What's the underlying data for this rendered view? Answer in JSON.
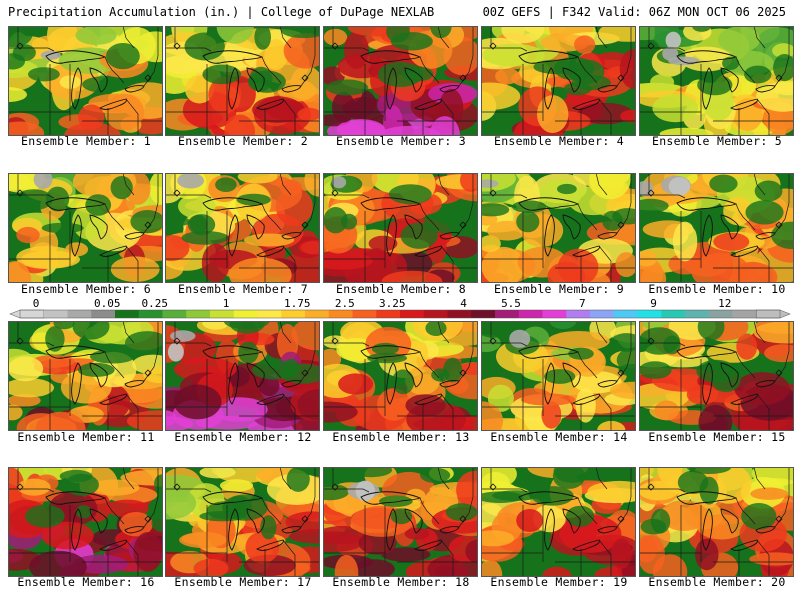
{
  "header": {
    "left": "Precipitation Accumulation (in.) | College of DuPage NEXLAB",
    "right": "00Z GEFS | F342 Valid: 06Z MON OCT 06 2025"
  },
  "panels": [
    {
      "label": "Ensemble Member: 1",
      "intensity": 0.4,
      "south": 0.6,
      "east": 0.3,
      "west": 0.3,
      "grey": 0.15
    },
    {
      "label": "Ensemble Member: 2",
      "intensity": 0.45,
      "south": 0.75,
      "east": 0.45,
      "west": 0.3,
      "grey": 0.0
    },
    {
      "label": "Ensemble Member: 3",
      "intensity": 0.85,
      "south": 0.8,
      "east": 0.7,
      "west": 0.6,
      "grey": 0.0
    },
    {
      "label": "Ensemble Member: 4",
      "intensity": 0.55,
      "south": 0.5,
      "east": 0.85,
      "west": 0.3,
      "grey": 0.0
    },
    {
      "label": "Ensemble Member: 5",
      "intensity": 0.3,
      "south": 0.5,
      "east": 0.35,
      "west": 0.2,
      "grey": 0.45
    },
    {
      "label": "Ensemble Member: 6",
      "intensity": 0.4,
      "south": 0.65,
      "east": 0.5,
      "west": 0.3,
      "grey": 0.1
    },
    {
      "label": "Ensemble Member: 7",
      "intensity": 0.5,
      "south": 0.7,
      "east": 0.6,
      "west": 0.3,
      "grey": 0.15
    },
    {
      "label": "Ensemble Member: 8",
      "intensity": 0.6,
      "south": 0.6,
      "east": 0.75,
      "west": 0.35,
      "grey": 0.1
    },
    {
      "label": "Ensemble Member: 9",
      "intensity": 0.35,
      "south": 0.6,
      "east": 0.45,
      "west": 0.25,
      "grey": 0.2
    },
    {
      "label": "Ensemble Member: 10",
      "intensity": 0.45,
      "south": 0.6,
      "east": 0.6,
      "west": 0.3,
      "grey": 0.45
    },
    {
      "label": "Ensemble Member: 11",
      "intensity": 0.45,
      "south": 0.7,
      "east": 0.45,
      "west": 0.55,
      "grey": 0.0
    },
    {
      "label": "Ensemble Member: 12",
      "intensity": 0.9,
      "south": 0.85,
      "east": 0.6,
      "west": 0.9,
      "grey": 0.25
    },
    {
      "label": "Ensemble Member: 13",
      "intensity": 0.55,
      "south": 0.7,
      "east": 0.6,
      "west": 0.4,
      "grey": 0.0
    },
    {
      "label": "Ensemble Member: 14",
      "intensity": 0.35,
      "south": 0.55,
      "east": 0.5,
      "west": 0.25,
      "grey": 0.2
    },
    {
      "label": "Ensemble Member: 15",
      "intensity": 0.6,
      "south": 0.65,
      "east": 0.7,
      "west": 0.35,
      "grey": 0.0
    },
    {
      "label": "Ensemble Member: 16",
      "intensity": 0.8,
      "south": 0.85,
      "east": 0.5,
      "west": 0.9,
      "grey": 0.0
    },
    {
      "label": "Ensemble Member: 17",
      "intensity": 0.45,
      "south": 0.7,
      "east": 0.55,
      "west": 0.3,
      "grey": 0.0
    },
    {
      "label": "Ensemble Member: 18",
      "intensity": 0.6,
      "south": 0.75,
      "east": 0.6,
      "west": 0.35,
      "grey": 0.4
    },
    {
      "label": "Ensemble Member: 19",
      "intensity": 0.5,
      "south": 0.75,
      "east": 0.6,
      "west": 0.3,
      "grey": 0.0
    },
    {
      "label": "Ensemble Member: 20",
      "intensity": 0.55,
      "south": 0.7,
      "east": 0.55,
      "west": 0.35,
      "grey": 0.0
    }
  ],
  "colorbar": {
    "tick_labels": [
      "0",
      "0.05",
      "0.25",
      "1",
      "1.75",
      "2.5",
      "3.25",
      "4",
      "5.5",
      "7",
      "9",
      "12"
    ],
    "colors": [
      "#d6d6d6",
      "#c3c3c3",
      "#a9a9a9",
      "#8c8c8c",
      "#16731c",
      "#2a9130",
      "#5aae3a",
      "#8fc93a",
      "#c8e033",
      "#f0f033",
      "#fde84a",
      "#fccd2d",
      "#fbad28",
      "#f98a22",
      "#f66020",
      "#ee3a1d",
      "#d8191c",
      "#b8141f",
      "#901122",
      "#6e0e28",
      "#a21c78",
      "#cd26ac",
      "#e33fd6",
      "#b07ef0",
      "#8ba4f5",
      "#4fc8f4",
      "#22e0e6",
      "#27c9b4",
      "#5fb3ae",
      "#8aa3a1",
      "#a4a4a4",
      "#bdbdbd"
    ]
  }
}
